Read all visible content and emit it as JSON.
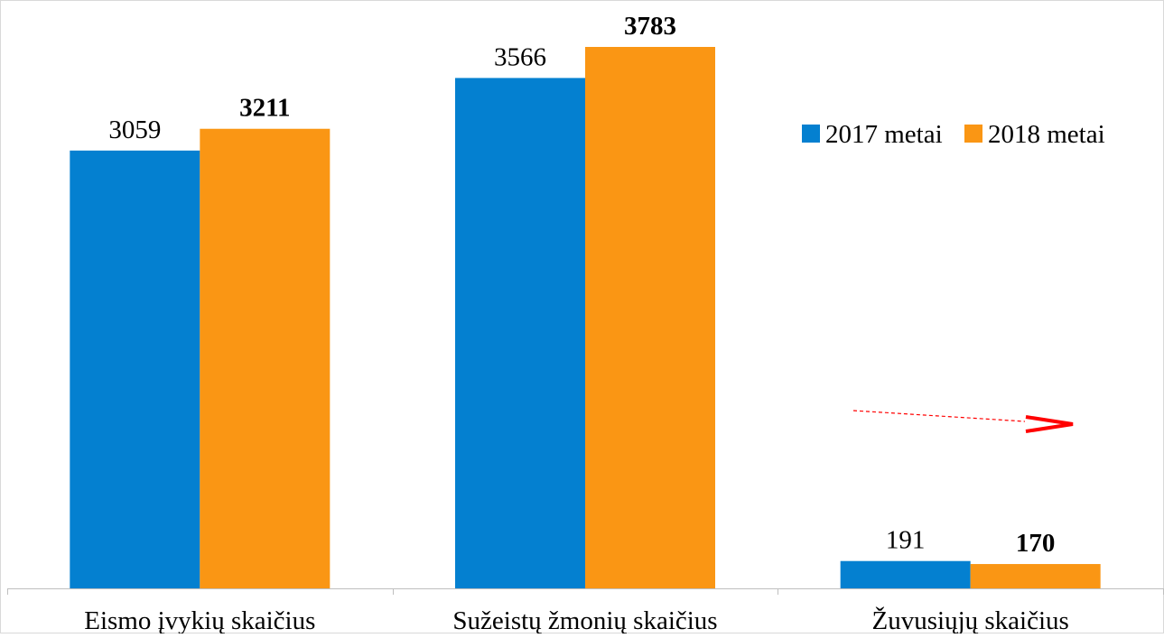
{
  "chart_data": {
    "type": "bar",
    "categories": [
      "Eismo įvykių skaičius",
      "Sužeistų žmonių skaičius",
      "Žuvusiųjų skaičius"
    ],
    "series": [
      {
        "name": "2017 metai",
        "values": [
          3059,
          3566,
          191
        ],
        "color": "#0480D0",
        "label_weight": "normal"
      },
      {
        "name": "2018 metai",
        "values": [
          3211,
          3783,
          170
        ],
        "color": "#FA9614",
        "label_weight": "bold"
      }
    ],
    "ylim": [
      0,
      4000
    ],
    "grid": false,
    "legend_position": "right",
    "annotation": {
      "type": "dashed-arrow",
      "color": "#FF0000",
      "category": "Žuvusiųjų skaičius"
    }
  }
}
